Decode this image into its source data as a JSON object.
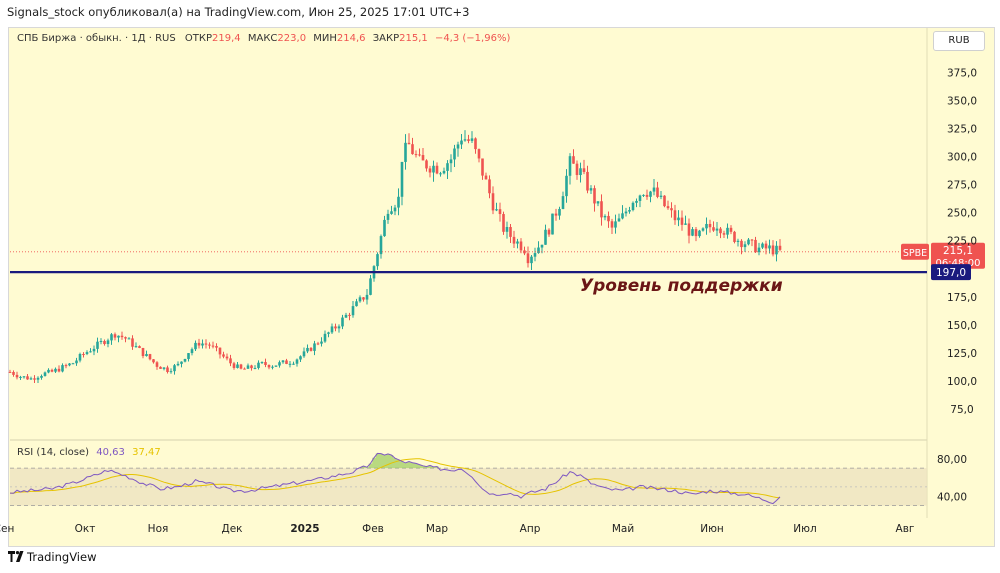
{
  "header": {
    "text": "Signals_stock опубликовал(а) на TradingView.com, Июн 25, 2025 17:01 UTC+3"
  },
  "legend": {
    "symbol": "СПБ Биржа · обыкн. · 1Д · RUS",
    "open_label": "ОТКР",
    "open": "219,4",
    "high_label": "МАКС",
    "high": "223,0",
    "low_label": "МИН",
    "low": "214,6",
    "close_label": "ЗАКР",
    "close": "215,1",
    "change": "−4,3 (−1,96%)"
  },
  "currency_button": "RUB",
  "rsi_legend": {
    "name": "RSI (14, close)",
    "rsi": "40,63",
    "ma": "37,47"
  },
  "footer": {
    "brand": "TradingView"
  },
  "annotation": {
    "text": "Уровень поддержки"
  },
  "price_tags": {
    "symbol": "SPBE",
    "price": "215,1",
    "time": "06:48:00",
    "support": "197,0"
  },
  "colors": {
    "up": "#26a69a",
    "down": "#ef5350",
    "background": "#fffbd2",
    "support_line": "#1a1a7e",
    "rsi_line": "#7e57c2",
    "rsi_ma": "#e6c300",
    "annotation": "#6b1616"
  },
  "chart_data": {
    "type": "candlestick",
    "price_axis": {
      "ticks": [
        "375,0",
        "350,0",
        "325,0",
        "300,0",
        "275,0",
        "250,0",
        "225,0",
        "175,0",
        "150,0",
        "125,0",
        "100,0",
        "75,0"
      ],
      "range": [
        50,
        395
      ]
    },
    "time_axis": {
      "labels": [
        "Сен",
        "Окт",
        "Ноя",
        "Дек",
        "2025",
        "Фев",
        "Мар",
        "Апр",
        "Май",
        "Июн",
        "Июл",
        "Авг"
      ]
    },
    "support_level": 197.0,
    "last_price": 215.1,
    "rsi_axis": {
      "ticks": [
        "80,00",
        "40,00"
      ],
      "range": [
        20,
        100
      ],
      "band": [
        30,
        70
      ]
    },
    "price_path": [
      [
        0,
        108
      ],
      [
        3,
        104
      ],
      [
        6,
        102
      ],
      [
        9,
        106
      ],
      [
        12,
        108
      ],
      [
        15,
        112
      ],
      [
        18,
        116
      ],
      [
        21,
        124
      ],
      [
        24,
        130
      ],
      [
        27,
        136
      ],
      [
        30,
        142
      ],
      [
        33,
        138
      ],
      [
        36,
        130
      ],
      [
        39,
        122
      ],
      [
        42,
        114
      ],
      [
        45,
        110
      ],
      [
        48,
        114
      ],
      [
        51,
        126
      ],
      [
        54,
        134
      ],
      [
        57,
        132
      ],
      [
        60,
        124
      ],
      [
        63,
        116
      ],
      [
        66,
        110
      ],
      [
        69,
        112
      ],
      [
        72,
        115
      ],
      [
        75,
        114
      ],
      [
        78,
        116
      ],
      [
        81,
        118
      ],
      [
        84,
        124
      ],
      [
        87,
        132
      ],
      [
        90,
        140
      ],
      [
        93,
        148
      ],
      [
        96,
        158
      ],
      [
        99,
        168
      ],
      [
        102,
        178
      ],
      [
        105,
        215
      ],
      [
        108,
        255
      ],
      [
        111,
        262
      ],
      [
        112,
        300
      ],
      [
        114,
        310
      ],
      [
        117,
        295
      ],
      [
        120,
        292
      ],
      [
        123,
        290
      ],
      [
        126,
        298
      ],
      [
        129,
        318
      ],
      [
        132,
        312
      ],
      [
        135,
        286
      ],
      [
        138,
        258
      ],
      [
        141,
        236
      ],
      [
        144,
        226
      ],
      [
        147,
        218
      ],
      [
        148,
        210
      ],
      [
        151,
        220
      ],
      [
        154,
        236
      ],
      [
        157,
        258
      ],
      [
        160,
        294
      ],
      [
        163,
        286
      ],
      [
        166,
        268
      ],
      [
        169,
        248
      ],
      [
        172,
        236
      ],
      [
        175,
        246
      ],
      [
        178,
        262
      ],
      [
        181,
        270
      ],
      [
        184,
        268
      ],
      [
        187,
        256
      ],
      [
        190,
        245
      ],
      [
        193,
        238
      ],
      [
        196,
        226
      ],
      [
        199,
        236
      ],
      [
        202,
        240
      ],
      [
        205,
        232
      ],
      [
        208,
        226
      ],
      [
        211,
        222
      ],
      [
        214,
        218
      ],
      [
        217,
        218
      ],
      [
        220,
        215
      ]
    ],
    "rsi_path": [
      [
        0,
        44
      ],
      [
        6,
        46
      ],
      [
        12,
        48
      ],
      [
        18,
        54
      ],
      [
        24,
        62
      ],
      [
        28,
        68
      ],
      [
        33,
        62
      ],
      [
        38,
        54
      ],
      [
        43,
        48
      ],
      [
        48,
        50
      ],
      [
        53,
        56
      ],
      [
        58,
        52
      ],
      [
        63,
        46
      ],
      [
        68,
        46
      ],
      [
        73,
        49
      ],
      [
        78,
        52
      ],
      [
        83,
        55
      ],
      [
        88,
        58
      ],
      [
        93,
        62
      ],
      [
        98,
        66
      ],
      [
        102,
        72
      ],
      [
        105,
        84
      ],
      [
        108,
        86
      ],
      [
        111,
        78
      ],
      [
        114,
        76
      ],
      [
        118,
        72
      ],
      [
        122,
        70
      ],
      [
        126,
        68
      ],
      [
        129,
        70
      ],
      [
        132,
        62
      ],
      [
        135,
        48
      ],
      [
        138,
        42
      ],
      [
        142,
        44
      ],
      [
        146,
        40
      ],
      [
        149,
        44
      ],
      [
        153,
        48
      ],
      [
        157,
        58
      ],
      [
        160,
        66
      ],
      [
        163,
        62
      ],
      [
        166,
        54
      ],
      [
        170,
        48
      ],
      [
        175,
        46
      ],
      [
        180,
        50
      ],
      [
        185,
        48
      ],
      [
        190,
        46
      ],
      [
        195,
        42
      ],
      [
        200,
        46
      ],
      [
        205,
        44
      ],
      [
        210,
        42
      ],
      [
        214,
        38
      ],
      [
        218,
        34
      ],
      [
        220,
        40
      ]
    ]
  }
}
